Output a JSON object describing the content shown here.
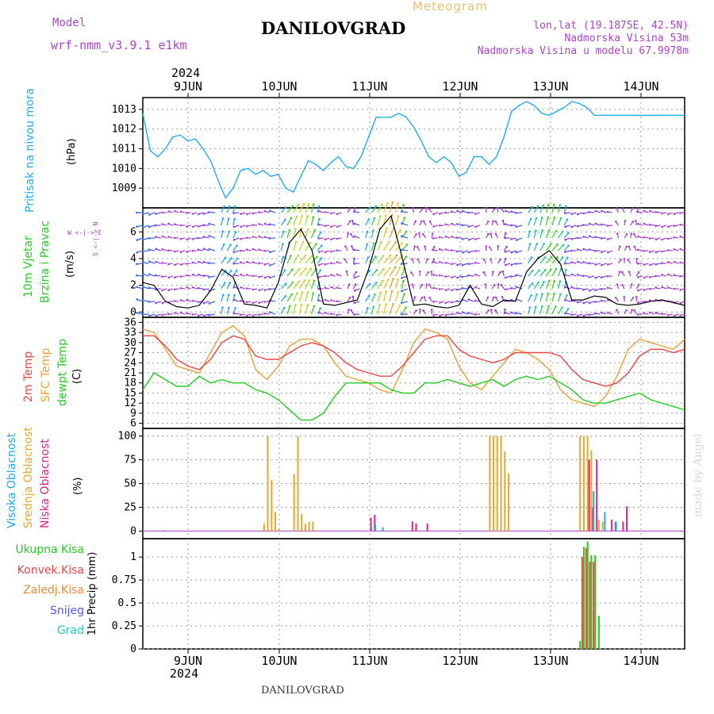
{
  "header": {
    "model_label": "Model",
    "model_name": "wrf-nmm_v3.9.1 e1km",
    "station": "DANILOVGRAD",
    "meteogram": "Meteogram",
    "lonlat": "lon,lat (19.1875E, 42.5N)",
    "elevation": "Nadmorska Visina 53m",
    "model_elevation": "Nadmorska Visina u modelu 67.9978m",
    "watermark": "made by Angel",
    "footer_station": "DANILOVGRAD"
  },
  "time_axis": {
    "year": "2024",
    "day_labels": [
      "9JUN",
      "10JUN",
      "11JUN",
      "12JUN",
      "13JUN",
      "14JUN"
    ],
    "range_hours": [
      0,
      144
    ]
  },
  "panels": {
    "pressure": {
      "ylabel": "Pritisak na nivou mora",
      "unit": "(hPa)"
    },
    "wind": {
      "ylabel1": "10m Vjetar",
      "ylabel2": "Brzina i Pravac",
      "unit": "(m/s)",
      "compass": "W <-|-> E",
      "compass_v": "S <-|-> N"
    },
    "temperature": {
      "label_2m": "2m Temp",
      "label_sfc": "SFC Temp",
      "label_dewpt": "dewpt Temp",
      "unit": "(C)"
    },
    "cloud": {
      "label_high": "Visoka Oblacnost",
      "label_mid": "Srednja Oblacnost",
      "label_low": "Niska Oblacnost",
      "unit": "(%)"
    },
    "precip": {
      "label_total": "Ukupna Kisa",
      "label_conv": "Konvek.Kisa",
      "label_frozen": "Zaledj.Kisa",
      "label_snow": "Snijeg",
      "label_hail": "Grad",
      "ylabel": "1hr Precip (mm)"
    }
  },
  "colors": {
    "pressure": "#22aaee",
    "temp2m": "#ee4444",
    "sfc": "#e8a038",
    "dewpt": "#22cc22",
    "high": "#22aaee",
    "mid": "#e0aa30",
    "low": "#dd2288",
    "total": "#22cc22",
    "conv": "#ee4444",
    "frozen": "#ee8833",
    "snow": "#5555ee",
    "hail": "#22ccbb",
    "purple": "#aa44cc"
  },
  "chart_data": [
    {
      "type": "line",
      "title": "Pritisak na nivou mora",
      "ylabel": "(hPa)",
      "ylim": [
        1008.0,
        1013.6
      ],
      "yticks": [
        1009,
        1010,
        1011,
        1012,
        1013
      ],
      "x": [
        0,
        2,
        4,
        6,
        8,
        10,
        12,
        14,
        16,
        18,
        20,
        22,
        24,
        26,
        28,
        30,
        32,
        34,
        36,
        38,
        40,
        42,
        44,
        46,
        48,
        50,
        52,
        54,
        56,
        58,
        60,
        62,
        64,
        66,
        68,
        70,
        72,
        74,
        76,
        78,
        80,
        82,
        84,
        86,
        88,
        90,
        92,
        94,
        96,
        98,
        100,
        102,
        104,
        106,
        108,
        110,
        112,
        114,
        116,
        118,
        120,
        122,
        124,
        126,
        128,
        130,
        132,
        134,
        136,
        138,
        140,
        142,
        144
      ],
      "series": [
        {
          "values": [
            1012.8,
            1010.9,
            1010.6,
            1011.0,
            1011.6,
            1011.7,
            1011.4,
            1011.5,
            1011.0,
            1010.4,
            1009.4,
            1008.5,
            1009.0,
            1009.9,
            1010.0,
            1009.7,
            1009.9,
            1009.6,
            1009.7,
            1009.0,
            1008.8,
            1009.6,
            1010.4,
            1010.2,
            1009.9,
            1010.3,
            1010.6,
            1010.1,
            1010.0,
            1010.6,
            1011.6,
            1012.6,
            1012.6,
            1012.6,
            1012.8,
            1012.6,
            1012.1,
            1011.4,
            1010.6,
            1010.3,
            1010.6,
            1010.3,
            1009.6,
            1009.8,
            1010.6,
            1010.6,
            1010.2,
            1010.6,
            1011.6,
            1012.9,
            1013.2,
            1013.4,
            1013.2,
            1012.8,
            1012.7,
            1012.9,
            1013.1,
            1013.4,
            1013.3,
            1013.1,
            1012.7,
            1012.7,
            1012.7,
            1012.7,
            1012.7,
            1012.7,
            1012.7,
            1012.7,
            1012.7,
            1012.7,
            1012.7,
            1012.7,
            1012.7
          ]
        }
      ]
    },
    {
      "type": "line",
      "title": "10m Vjetar Brzina i Pravac",
      "ylabel": "(m/s)",
      "ylim": [
        -0.4,
        7.8
      ],
      "yticks": [
        0,
        2,
        4,
        6
      ],
      "x": [
        0,
        3,
        6,
        9,
        12,
        15,
        18,
        21,
        24,
        27,
        30,
        33,
        36,
        39,
        42,
        45,
        48,
        51,
        54,
        57,
        60,
        63,
        66,
        69,
        72,
        75,
        78,
        81,
        84,
        87,
        90,
        93,
        96,
        99,
        102,
        105,
        108,
        111,
        114,
        117,
        120,
        123,
        126,
        129,
        132,
        135,
        138,
        141,
        144
      ],
      "series": [
        {
          "name": "10m Vjetar",
          "values": [
            2.2,
            2.0,
            0.8,
            0.4,
            0.3,
            0.5,
            1.6,
            3.2,
            2.6,
            0.6,
            0.5,
            0.3,
            2.2,
            5.2,
            6.2,
            4.6,
            0.6,
            0.5,
            0.7,
            0.9,
            3.2,
            6.2,
            7.2,
            4.0,
            0.5,
            0.6,
            0.4,
            0.3,
            0.5,
            2.0,
            0.6,
            0.4,
            0.9,
            0.8,
            3.0,
            4.0,
            4.6,
            3.6,
            0.9,
            0.9,
            1.2,
            1.1,
            0.6,
            0.5,
            0.6,
            0.8,
            0.9,
            0.7,
            0.5
          ]
        }
      ]
    },
    {
      "type": "line",
      "title": "2m Temp / SFC Temp / dewpt Temp",
      "ylabel": "(C)",
      "ylim": [
        4.5,
        37.5
      ],
      "yticks": [
        6,
        9,
        12,
        15,
        18,
        21,
        24,
        27,
        30,
        33,
        36
      ],
      "x": [
        0,
        3,
        6,
        9,
        12,
        15,
        18,
        21,
        24,
        27,
        30,
        33,
        36,
        39,
        42,
        45,
        48,
        51,
        54,
        57,
        60,
        63,
        66,
        69,
        72,
        75,
        78,
        81,
        84,
        87,
        90,
        93,
        96,
        99,
        102,
        105,
        108,
        111,
        114,
        117,
        120,
        123,
        126,
        129,
        132,
        135,
        138,
        141,
        144
      ],
      "series": [
        {
          "name": "2m Temp",
          "values": [
            32,
            32,
            29,
            25,
            23,
            22,
            25,
            30,
            32,
            31,
            26,
            25,
            25,
            27,
            29,
            30,
            29,
            27,
            24,
            22,
            21,
            20,
            20,
            23,
            27,
            31,
            32,
            32,
            28,
            26,
            25,
            24,
            25,
            27,
            27,
            27,
            27,
            26,
            22,
            19,
            18,
            17,
            18,
            21,
            26,
            28,
            28,
            27,
            28
          ]
        },
        {
          "name": "SFC Temp",
          "values": [
            34,
            33,
            28,
            23,
            22,
            21,
            27,
            33,
            35,
            32,
            22,
            19,
            23,
            29,
            31,
            31,
            29,
            24,
            20,
            19,
            18,
            16,
            15,
            22,
            30,
            34,
            33,
            31,
            23,
            18,
            16,
            20,
            24,
            28,
            27,
            25,
            22,
            16,
            13,
            12,
            11,
            14,
            20,
            28,
            31,
            30,
            29,
            28,
            31
          ]
        },
        {
          "name": "dewpt Temp",
          "values": [
            16,
            21,
            19,
            17,
            17,
            20,
            18,
            19,
            18,
            18,
            16,
            15,
            13,
            10,
            7,
            7,
            9,
            14,
            18,
            18,
            18,
            18,
            16,
            15,
            15,
            18,
            18,
            19,
            18,
            17,
            18,
            19,
            17,
            19,
            20,
            19,
            20,
            18,
            16,
            13,
            12,
            12,
            13,
            14,
            15,
            13,
            12,
            11,
            10
          ]
        }
      ]
    },
    {
      "type": "bar",
      "title": "Visoka / Srednja / Niska Oblacnost",
      "ylabel": "(%)",
      "ylim": [
        -8,
        108
      ],
      "yticks": [
        0,
        25,
        50,
        75,
        100
      ],
      "series": [
        {
          "name": "Srednja Oblacnost",
          "x": [
            32,
            33,
            34,
            35,
            36,
            40,
            41,
            42,
            43,
            44,
            45,
            92,
            93,
            94,
            95,
            96,
            97,
            116,
            117,
            118,
            119,
            121,
            122
          ],
          "values": [
            8,
            100,
            54,
            20,
            2,
            60,
            100,
            18,
            8,
            10,
            10,
            100,
            100,
            100,
            100,
            84,
            61,
            100,
            100,
            100,
            85,
            12,
            10
          ]
        },
        {
          "name": "Niska Oblacnost",
          "x": [
            60,
            61,
            71,
            72,
            75,
            118,
            119,
            120,
            124,
            125,
            127,
            128
          ],
          "values": [
            14,
            17,
            10,
            8,
            8,
            75,
            25,
            75,
            12,
            10,
            10,
            26
          ]
        },
        {
          "name": "Visoka Oblacnost",
          "x": [
            6,
            62,
            64,
            120,
            123,
            126
          ],
          "values": [
            1,
            7,
            4,
            42,
            20,
            10
          ]
        }
      ]
    },
    {
      "type": "bar",
      "title": "1hr Precip",
      "ylabel": "1hr Precip (mm)",
      "ylim": [
        0,
        1.2
      ],
      "yticks": [
        0,
        0.25,
        0.5,
        0.75,
        1
      ],
      "series": [
        {
          "name": "Ukupna Kisa",
          "x": [
            116,
            117,
            118,
            119,
            120,
            121
          ],
          "values": [
            0.09,
            1.11,
            1.17,
            1.02,
            1.02,
            0.36
          ]
        },
        {
          "name": "Konvek.Kisa",
          "x": [
            117,
            118,
            119,
            120
          ],
          "values": [
            1.0,
            1.1,
            0.95,
            0.95
          ]
        }
      ]
    }
  ]
}
